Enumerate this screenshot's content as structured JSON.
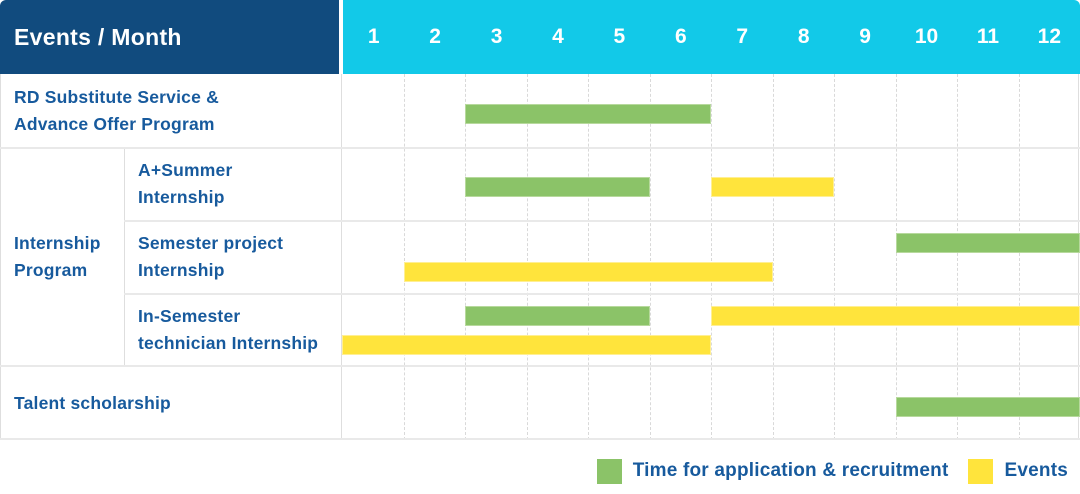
{
  "header": {
    "label_column": "Events / Month",
    "months": [
      "1",
      "2",
      "3",
      "4",
      "5",
      "6",
      "7",
      "8",
      "9",
      "10",
      "11",
      "12"
    ]
  },
  "colors": {
    "header_bg": "#114B7E",
    "month_bar_bg": "#12C9E8",
    "application_green": "#8BC368",
    "event_yellow": "#FFE43C",
    "label_text": "#175A9D",
    "header_text": "#FFFFFF"
  },
  "chart_data": {
    "type": "table",
    "title": "Events / Month",
    "x_axis": {
      "label": "Month",
      "ticks": [
        1,
        2,
        3,
        4,
        5,
        6,
        7,
        8,
        9,
        10,
        11,
        12
      ]
    },
    "legend": [
      {
        "key": "application",
        "label": "Time for application & recruitment",
        "color": "#8BC368"
      },
      {
        "key": "event",
        "label": "Events",
        "color": "#FFE43C"
      }
    ],
    "group_cell": {
      "label_lines": [
        "Internship",
        "Program"
      ],
      "row_start": 1,
      "row_end": 3
    },
    "rows": [
      {
        "label": "RD Substitute Service & Advance Offer Program",
        "label_lines": [
          "RD Substitute Service &",
          "Advance Offer Program"
        ],
        "group": null,
        "bar_rows": [
          [
            {
              "key": "application",
              "start": 3,
              "end": 6
            }
          ]
        ]
      },
      {
        "label": "A+Summer Internship",
        "label_lines": [
          "A+Summer",
          "Internship"
        ],
        "group": "Internship Program",
        "bar_rows": [
          [
            {
              "key": "application",
              "start": 3,
              "end": 5
            },
            {
              "key": "event",
              "start": 7,
              "end": 8
            }
          ]
        ]
      },
      {
        "label": "Semester project Internship",
        "label_lines": [
          "Semester project",
          "Internship"
        ],
        "group": "Internship Program",
        "bar_rows": [
          [
            {
              "key": "application",
              "start": 10,
              "end": 12
            }
          ],
          [
            {
              "key": "event",
              "start": 2,
              "end": 7
            }
          ]
        ]
      },
      {
        "label": "In-Semester technician Internship",
        "label_lines": [
          "In-Semester",
          "technician Internship"
        ],
        "group": "Internship Program",
        "bar_rows": [
          [
            {
              "key": "application",
              "start": 3,
              "end": 5
            },
            {
              "key": "event",
              "start": 7,
              "end": 12
            }
          ],
          [
            {
              "key": "event",
              "start": 1,
              "end": 6
            }
          ]
        ]
      },
      {
        "label": "Talent scholarship",
        "label_lines": [
          "Talent scholarship"
        ],
        "group": null,
        "bar_rows": [
          [
            {
              "key": "application",
              "start": 10,
              "end": 12
            }
          ]
        ]
      }
    ]
  }
}
